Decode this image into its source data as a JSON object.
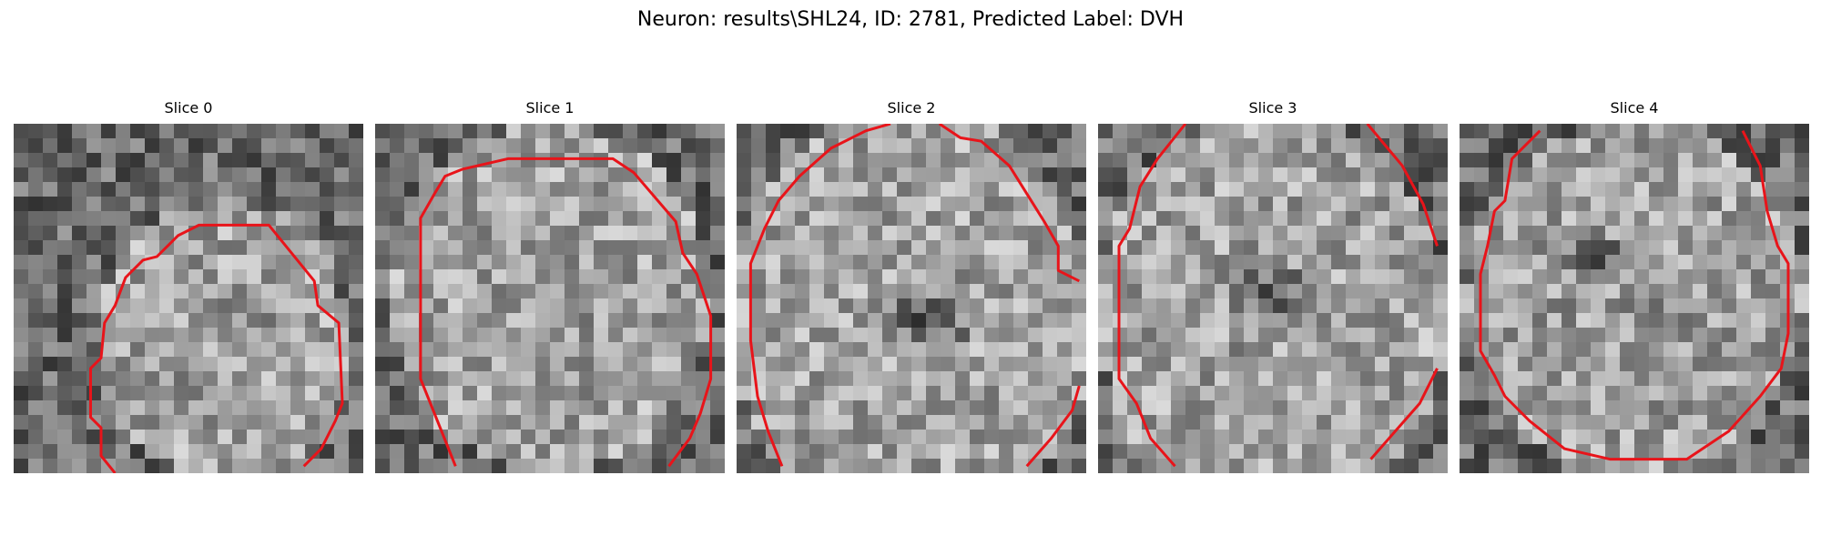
{
  "figure": {
    "title": "Neuron: results\\SHL24, ID: 2781, Predicted Label: DVH"
  },
  "colors": {
    "background": "#ffffff",
    "contour": "#e8141a",
    "text": "#000000"
  },
  "panels": [
    {
      "title": "Slice 0",
      "seed": 11
    },
    {
      "title": "Slice 1",
      "seed": 23
    },
    {
      "title": "Slice 2",
      "seed": 37
    },
    {
      "title": "Slice 3",
      "seed": 51
    },
    {
      "title": "Slice 4",
      "seed": 67
    }
  ]
}
